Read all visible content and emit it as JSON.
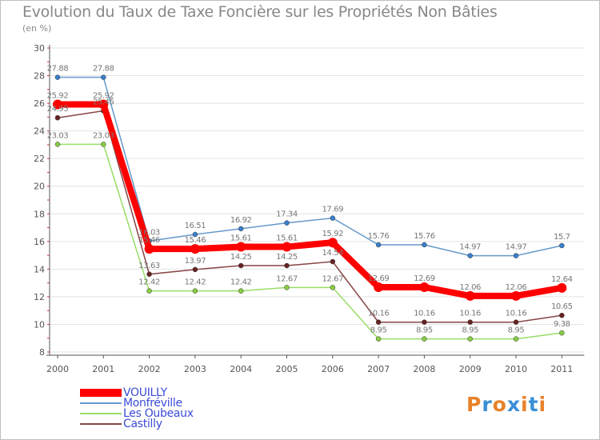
{
  "chart_data": {
    "type": "line",
    "title": "Evolution du Taux de Taxe Foncière sur les Propriétés Non Bâties",
    "ylabel": "(en %)",
    "xlabel": "",
    "categories": [
      "2000",
      "2001",
      "2002",
      "2003",
      "2004",
      "2005",
      "2006",
      "2007",
      "2008",
      "2009",
      "2010",
      "2011"
    ],
    "ylim": [
      8,
      30
    ],
    "yticks": [
      "8",
      "10",
      "12",
      "14",
      "16",
      "18",
      "20",
      "22",
      "24",
      "26",
      "28",
      "30"
    ],
    "grid": "horizontal",
    "series": [
      {
        "name": "Monfréville",
        "color": "#6699cc",
        "point_color": "#3a7fcc",
        "width": 1.5,
        "values": [
          27.88,
          27.88,
          16.03,
          16.51,
          16.92,
          17.34,
          17.69,
          15.76,
          15.76,
          14.97,
          14.97,
          15.7
        ],
        "labels": [
          "27.88",
          "27.88",
          "16.03",
          "16.51",
          "16.92",
          "17.34",
          "17.69",
          "15.76",
          "15.76",
          "14.97",
          "14.97",
          "15.7"
        ]
      },
      {
        "name": "Les Oubeaux",
        "color": "#99dd66",
        "point_color": "#88cc44",
        "width": 1.5,
        "values": [
          23.03,
          23.03,
          12.42,
          12.42,
          12.42,
          12.67,
          12.67,
          8.95,
          8.95,
          8.95,
          8.95,
          9.38
        ],
        "labels": [
          "23.03",
          "23.03",
          "12.42",
          "12.42",
          "12.42",
          "12.67",
          "12.67",
          "8.95",
          "8.95",
          "8.95",
          "8.95",
          "9.38"
        ]
      },
      {
        "name": "Castilly",
        "color": "#884444",
        "point_color": "#662222",
        "width": 1.5,
        "values": [
          24.95,
          25.45,
          13.63,
          13.97,
          14.25,
          14.25,
          14.54,
          10.16,
          10.16,
          10.16,
          10.16,
          10.65
        ],
        "labels": [
          "24.95",
          "25.45",
          "13.63",
          "13.97",
          "14.25",
          "14.25",
          "14.54",
          "10.16",
          "10.16",
          "10.16",
          "10.16",
          "10.65"
        ]
      },
      {
        "name": "VOUILLY",
        "color": "#ff0000",
        "point_color": "#ff0000",
        "width": 8,
        "values": [
          25.92,
          25.92,
          15.46,
          15.46,
          15.61,
          15.61,
          15.92,
          12.69,
          12.69,
          12.06,
          12.06,
          12.64
        ],
        "labels": [
          "25.92",
          "25.92",
          "15.46",
          "15.46",
          "15.61",
          "15.61",
          "15.92",
          "12.69",
          "12.69",
          "12.06",
          "12.06",
          "12.64"
        ]
      }
    ],
    "legend": [
      {
        "name": "VOUILLY",
        "color": "#ff0000",
        "width": 8
      },
      {
        "name": "Monfréville",
        "color": "#6699cc",
        "width": 1.5
      },
      {
        "name": "Les Oubeaux",
        "color": "#99dd66",
        "width": 1.5
      },
      {
        "name": "Castilly",
        "color": "#884444",
        "width": 1.5
      }
    ]
  },
  "logo": {
    "text": "Proxiti",
    "colors": [
      "#e8822a",
      "#3a8fd6",
      "#e8822a",
      "#3a8fd6",
      "#e8822a",
      "#3a8fd6",
      "#e8822a"
    ]
  }
}
